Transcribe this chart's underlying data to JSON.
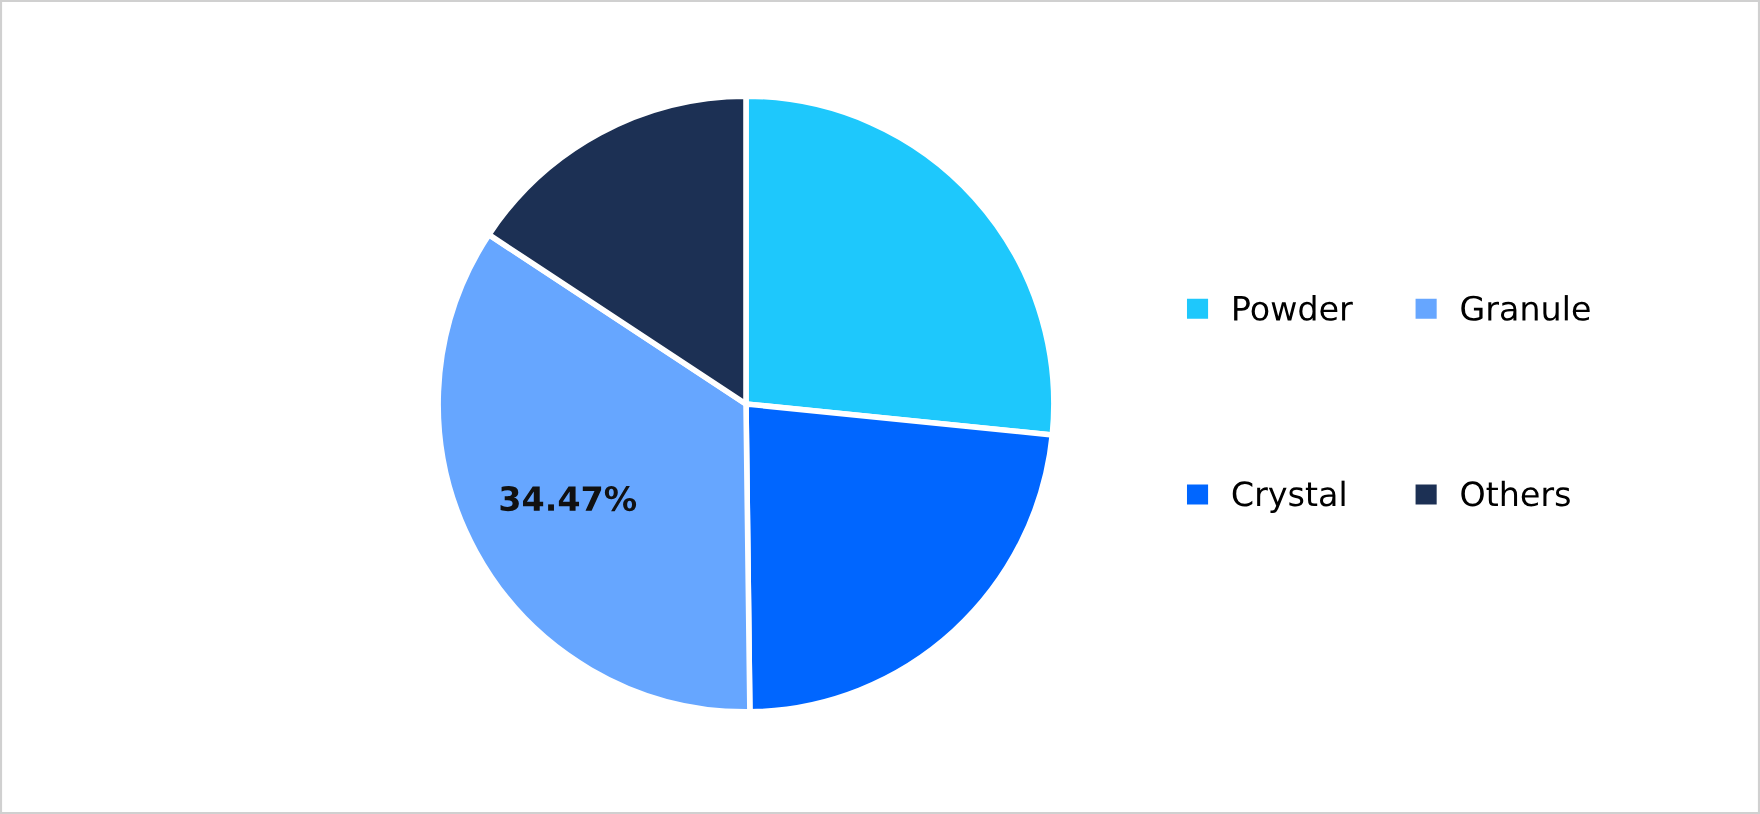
{
  "chart_data": {
    "type": "pie",
    "categories": [
      "Powder",
      "Crystal",
      "Granule",
      "Others"
    ],
    "values": [
      26.6,
      23.2,
      34.47,
      15.73
    ],
    "colors": [
      "#1ec8fc",
      "#0066ff",
      "#66a6ff",
      "#1c3054"
    ],
    "value_labels": [
      null,
      null,
      "34.47%",
      null
    ],
    "legend": "right"
  }
}
